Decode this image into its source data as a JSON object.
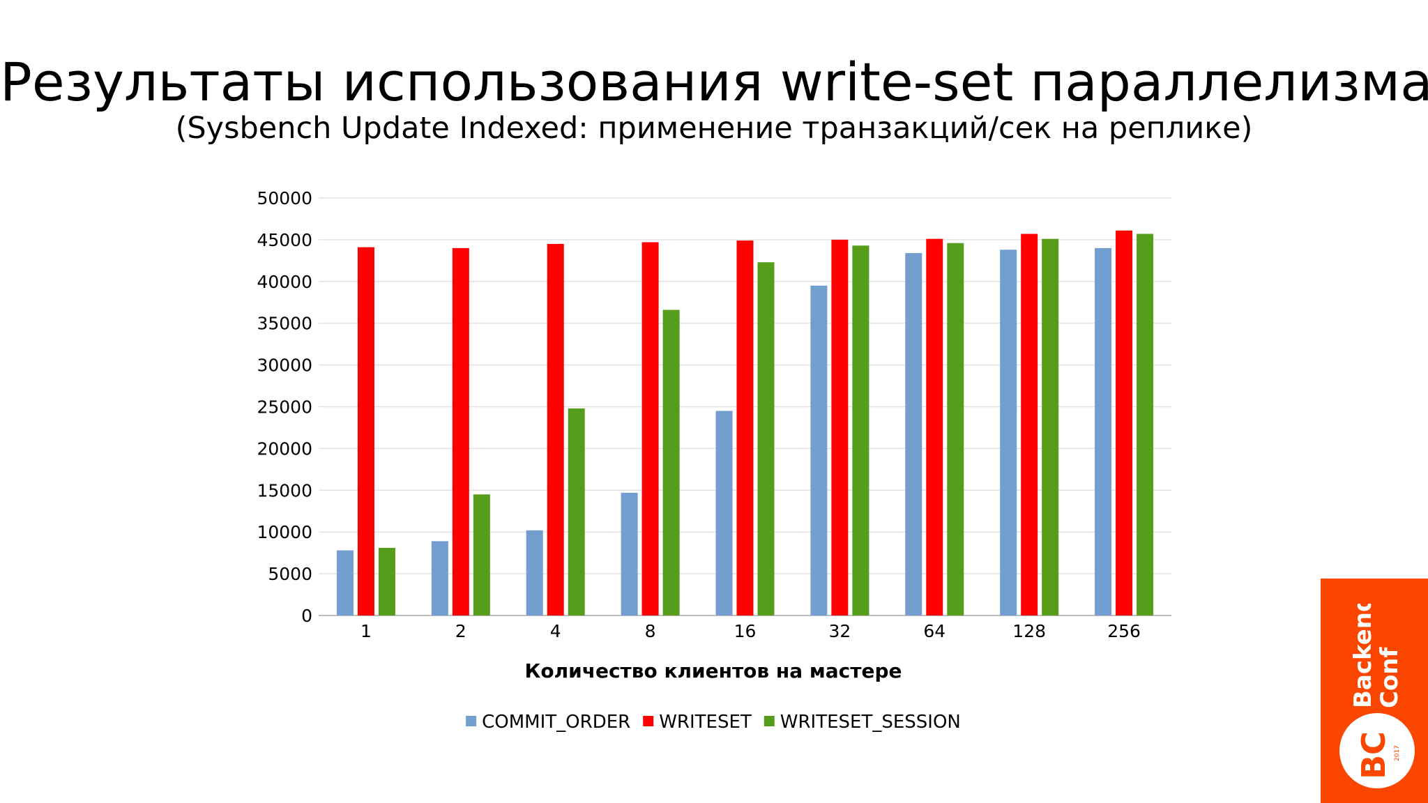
{
  "slide": {
    "title": "Результаты использования write-set параллелизма:",
    "subtitle": "(Sysbench Update Indexed: применение транзакций/сек на реплике)"
  },
  "brand": {
    "name_line1": "Backend",
    "name_line2": "Conf",
    "logo_letters": "BC",
    "year": "2017",
    "color": "#fb4600"
  },
  "chart_data": {
    "type": "bar",
    "title": "",
    "xlabel": "Количество клиентов на мастере",
    "ylabel": "",
    "categories": [
      "1",
      "2",
      "4",
      "8",
      "16",
      "32",
      "64",
      "128",
      "256"
    ],
    "ylim": [
      0,
      50000
    ],
    "yticks": [
      0,
      5000,
      10000,
      15000,
      20000,
      25000,
      30000,
      35000,
      40000,
      45000,
      50000
    ],
    "grid": true,
    "legend_position": "bottom",
    "series": [
      {
        "name": "COMMIT_ORDER",
        "color": "#729fcf",
        "values": [
          7800,
          8900,
          10200,
          14700,
          24500,
          39500,
          43400,
          43800,
          44000
        ]
      },
      {
        "name": "WRITESET",
        "color": "#ff0000",
        "values": [
          44100,
          44000,
          44500,
          44700,
          44900,
          45000,
          45100,
          45700,
          46100
        ]
      },
      {
        "name": "WRITESET_SESSION",
        "color": "#579d1c",
        "values": [
          8100,
          14500,
          24800,
          36600,
          42300,
          44300,
          44600,
          45100,
          45700
        ]
      }
    ]
  }
}
